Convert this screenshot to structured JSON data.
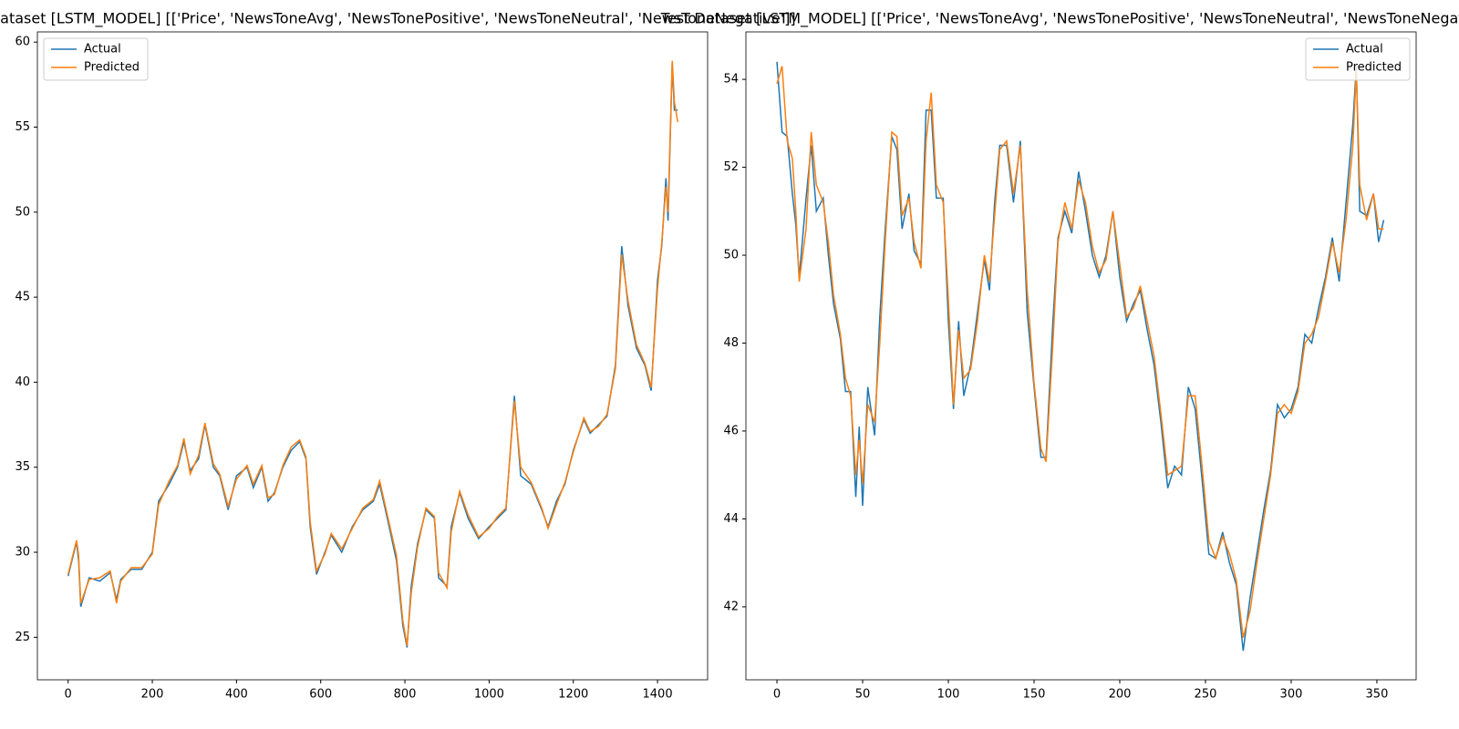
{
  "chart_data": [
    {
      "type": "line",
      "title": "Train Dataset [LSTM_MODEL] [['Price', 'NewsToneAvg', 'NewsTonePositive', 'NewsToneNeutral', 'NewsToneNegative']]",
      "x": [
        0,
        20,
        25,
        30,
        50,
        75,
        100,
        115,
        125,
        150,
        175,
        200,
        215,
        240,
        260,
        275,
        290,
        310,
        325,
        345,
        360,
        380,
        400,
        425,
        440,
        460,
        475,
        490,
        510,
        530,
        550,
        565,
        575,
        590,
        610,
        625,
        650,
        675,
        700,
        725,
        740,
        760,
        780,
        795,
        805,
        815,
        830,
        850,
        870,
        880,
        900,
        910,
        930,
        950,
        975,
        1000,
        1020,
        1040,
        1060,
        1075,
        1100,
        1125,
        1140,
        1160,
        1180,
        1200,
        1225,
        1240,
        1260,
        1280,
        1300,
        1315,
        1330,
        1350,
        1370,
        1385,
        1400,
        1410,
        1420,
        1425,
        1435,
        1440,
        1448
      ],
      "series": [
        {
          "name": "Actual",
          "color": "#1f77b4",
          "values": [
            28.6,
            30.6,
            29.5,
            26.8,
            28.5,
            28.3,
            28.8,
            27.2,
            28.4,
            29.0,
            29.0,
            30.0,
            33.0,
            34.0,
            35.0,
            36.5,
            34.8,
            35.5,
            37.5,
            35.0,
            34.5,
            32.5,
            34.5,
            35.0,
            33.8,
            35.0,
            33.0,
            33.5,
            35.0,
            36.0,
            36.5,
            35.5,
            31.5,
            28.7,
            30.0,
            31.0,
            30.0,
            31.5,
            32.5,
            33.0,
            34.0,
            31.8,
            29.5,
            25.7,
            24.4,
            28.0,
            30.5,
            32.5,
            32.0,
            28.5,
            28.0,
            31.5,
            33.5,
            32.0,
            30.8,
            31.5,
            32.0,
            32.5,
            39.2,
            34.5,
            34.0,
            32.5,
            31.5,
            33.0,
            34.0,
            36.0,
            37.8,
            37.0,
            37.5,
            38.0,
            41.0,
            48.0,
            44.5,
            42.0,
            41.0,
            39.5,
            46.0,
            48.0,
            52.0,
            49.5,
            58.8,
            56.0,
            56.0
          ]
        },
        {
          "name": "Predicted",
          "color": "#ff7f0e",
          "values": [
            28.7,
            30.7,
            29.8,
            27.0,
            28.4,
            28.5,
            28.9,
            27.0,
            28.3,
            29.1,
            29.1,
            29.9,
            32.8,
            34.2,
            35.1,
            36.7,
            34.6,
            35.7,
            37.6,
            35.2,
            34.6,
            32.7,
            34.3,
            35.1,
            34.0,
            35.1,
            33.2,
            33.4,
            35.1,
            36.2,
            36.6,
            35.6,
            31.8,
            28.9,
            29.9,
            31.1,
            30.2,
            31.4,
            32.6,
            33.1,
            34.2,
            32.0,
            29.8,
            26.0,
            24.5,
            27.6,
            30.3,
            32.6,
            32.1,
            28.8,
            27.9,
            31.2,
            33.6,
            32.2,
            30.9,
            31.4,
            32.1,
            32.6,
            38.9,
            35.0,
            34.1,
            32.6,
            31.4,
            32.8,
            34.1,
            35.9,
            37.9,
            37.1,
            37.4,
            38.1,
            40.8,
            47.5,
            44.8,
            42.2,
            41.1,
            39.7,
            45.5,
            48.2,
            51.5,
            50.0,
            58.9,
            56.5,
            55.3
          ]
        }
      ],
      "xlim": [
        -73,
        1519
      ],
      "ylim": [
        22.5,
        60.6
      ],
      "xticks": [
        0,
        200,
        400,
        600,
        800,
        1000,
        1200,
        1400
      ],
      "yticks": [
        25,
        30,
        35,
        40,
        45,
        50,
        55,
        60
      ],
      "legend": "upper left"
    },
    {
      "type": "line",
      "title": "Test Dataset [LSTM_MODEL] [['Price', 'NewsToneAvg', 'NewsTonePositive', 'NewsToneNeutral', 'NewsToneNegative']]",
      "x": [
        0,
        3,
        6,
        9,
        11,
        13,
        17,
        20,
        23,
        27,
        30,
        33,
        37,
        40,
        43,
        46,
        48,
        50,
        53,
        57,
        60,
        63,
        67,
        70,
        73,
        77,
        80,
        84,
        87,
        90,
        93,
        97,
        100,
        103,
        106,
        109,
        113,
        117,
        121,
        124,
        127,
        130,
        134,
        138,
        142,
        146,
        150,
        154,
        157,
        161,
        164,
        168,
        172,
        176,
        180,
        184,
        188,
        192,
        196,
        200,
        204,
        208,
        212,
        216,
        220,
        224,
        228,
        232,
        236,
        240,
        244,
        248,
        252,
        256,
        260,
        264,
        268,
        272,
        276,
        280,
        284,
        288,
        292,
        296,
        300,
        304,
        308,
        312,
        316,
        320,
        324,
        328,
        332,
        336,
        338,
        340,
        344,
        348,
        351,
        354
      ],
      "series": [
        {
          "name": "Actual",
          "color": "#1f77b4",
          "values": [
            54.4,
            52.8,
            52.7,
            51.4,
            50.7,
            49.5,
            51.3,
            52.5,
            51.0,
            51.3,
            50.0,
            48.9,
            48.1,
            46.9,
            46.9,
            44.5,
            46.1,
            44.3,
            47.0,
            45.9,
            48.6,
            50.5,
            52.7,
            52.4,
            50.6,
            51.4,
            50.1,
            49.8,
            53.3,
            53.3,
            51.3,
            51.3,
            48.5,
            46.5,
            48.5,
            46.8,
            47.5,
            48.7,
            49.9,
            49.2,
            51.2,
            52.5,
            52.5,
            51.2,
            52.6,
            48.7,
            47.0,
            45.4,
            45.4,
            48.5,
            50.4,
            51.0,
            50.5,
            51.9,
            51.0,
            50.0,
            49.5,
            50.0,
            51.0,
            49.5,
            48.5,
            48.9,
            49.2,
            48.3,
            47.5,
            46.2,
            44.7,
            45.2,
            45.0,
            47.0,
            46.5,
            44.9,
            43.2,
            43.1,
            43.7,
            43.0,
            42.5,
            41.0,
            42.2,
            43.2,
            44.2,
            45.1,
            46.6,
            46.3,
            46.5,
            47.0,
            48.2,
            48.0,
            48.8,
            49.5,
            50.4,
            49.4,
            51.2,
            53.0,
            54.3,
            51.0,
            50.9,
            51.4,
            50.3,
            50.8
          ]
        },
        {
          "name": "Predicted",
          "color": "#ff7f0e",
          "values": [
            53.9,
            54.3,
            52.6,
            52.2,
            51.0,
            49.4,
            50.6,
            52.8,
            51.6,
            51.2,
            50.3,
            49.1,
            48.2,
            47.2,
            46.8,
            45.0,
            45.8,
            44.8,
            46.6,
            46.2,
            48.0,
            50.2,
            52.8,
            52.7,
            50.9,
            51.3,
            50.3,
            49.7,
            52.6,
            53.7,
            51.6,
            51.2,
            49.0,
            46.6,
            48.3,
            47.2,
            47.4,
            48.5,
            50.0,
            49.4,
            50.9,
            52.4,
            52.6,
            51.4,
            52.5,
            49.2,
            47.1,
            45.6,
            45.3,
            48.0,
            50.3,
            51.2,
            50.6,
            51.7,
            51.2,
            50.2,
            49.6,
            49.9,
            51.0,
            49.8,
            48.6,
            48.8,
            49.3,
            48.5,
            47.7,
            46.4,
            45.0,
            45.1,
            45.2,
            46.8,
            46.8,
            45.2,
            43.5,
            43.1,
            43.6,
            43.2,
            42.6,
            41.3,
            41.9,
            43.0,
            44.0,
            45.0,
            46.4,
            46.6,
            46.4,
            46.9,
            48.0,
            48.2,
            48.6,
            49.4,
            50.3,
            49.6,
            50.8,
            52.5,
            54.2,
            51.6,
            50.8,
            51.4,
            50.6,
            50.6
          ]
        }
      ],
      "xlim": [
        -18.1,
        372.9
      ],
      "ylim": [
        40.34,
        55.08
      ],
      "xticks": [
        0,
        50,
        100,
        150,
        200,
        250,
        300,
        350
      ],
      "yticks": [
        42,
        44,
        46,
        48,
        50,
        52,
        54
      ],
      "legend": "upper right"
    }
  ]
}
